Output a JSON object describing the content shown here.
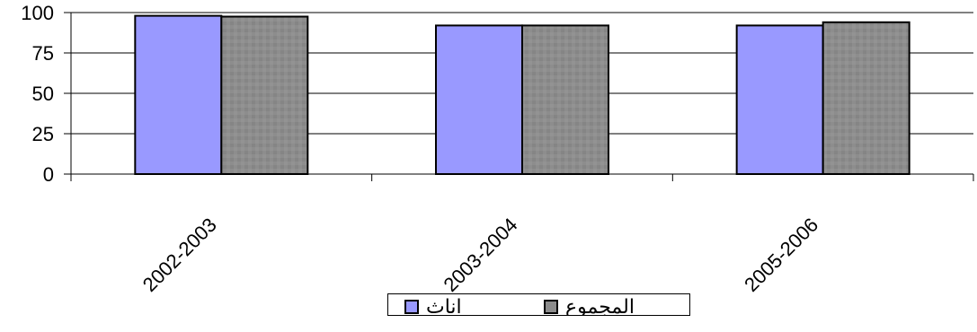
{
  "chart_data": {
    "type": "bar",
    "categories": [
      "2002-2003",
      "2003-2004",
      "2005-2006"
    ],
    "series": [
      {
        "name": "اناث",
        "values": [
          98,
          92,
          92
        ],
        "color": "#9999ff"
      },
      {
        "name": "المجموع",
        "values": [
          97.5,
          92,
          94
        ],
        "color": "#8c8c8c"
      }
    ],
    "y_ticks": [
      0,
      25,
      50,
      75,
      100
    ],
    "ylim": [
      0,
      100
    ],
    "grid": true,
    "legend_position": "bottom"
  }
}
